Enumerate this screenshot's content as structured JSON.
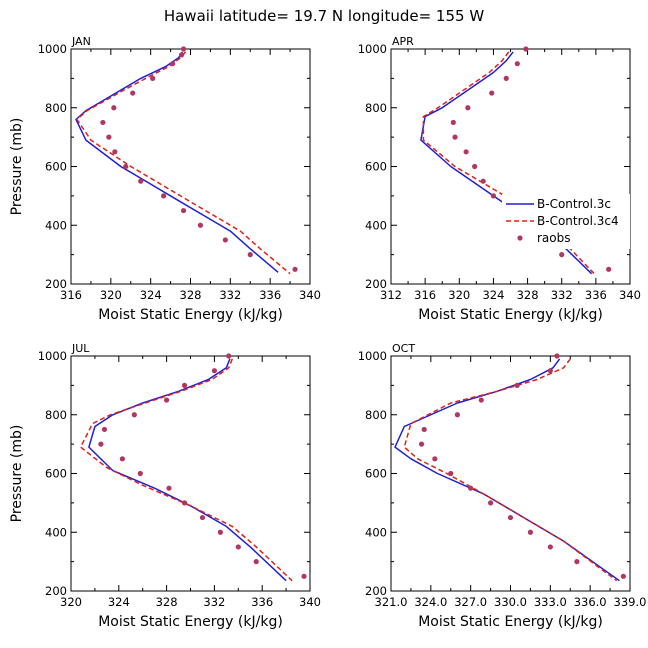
{
  "title": "Hawaii  latitude= 19.7 N longitude= 155 W",
  "colors": {
    "control": "#1f1fd6",
    "control4": "#e0201a",
    "raobs": "#b03860"
  },
  "legend": {
    "items": [
      "B-Control.3c",
      "B-Control.3c4",
      "raobs"
    ]
  },
  "chart_data": [
    {
      "type": "line",
      "panel": "JAN",
      "xlabel": "Moist Static Energy (kJ/kg)",
      "ylabel": "Pressure (mb)",
      "xlim": [
        316,
        340
      ],
      "xticks": [
        "316",
        "320",
        "324",
        "328",
        "332",
        "336",
        "340"
      ],
      "xtick_values": [
        316,
        320,
        324,
        328,
        332,
        336,
        340
      ],
      "ylim": [
        1000,
        200
      ],
      "yticks": [
        1000,
        800,
        600,
        400,
        200
      ],
      "series": [
        {
          "name": "B-Control.3c",
          "style": "solid",
          "points": [
            [
              327.2,
              990
            ],
            [
              326.8,
              970
            ],
            [
              325.5,
              940
            ],
            [
              323,
              900
            ],
            [
              321,
              860
            ],
            [
              319,
              820
            ],
            [
              317.5,
              790
            ],
            [
              316.5,
              760
            ],
            [
              317.5,
              690
            ],
            [
              321,
              600
            ],
            [
              324,
              540
            ],
            [
              327,
              480
            ],
            [
              330,
              420
            ],
            [
              332,
              380
            ],
            [
              334,
              320
            ],
            [
              336.8,
              240
            ]
          ]
        },
        {
          "name": "B-Control.3c4",
          "style": "dashed",
          "points": [
            [
              327.5,
              990
            ],
            [
              327,
              970
            ],
            [
              325.8,
              940
            ],
            [
              323.5,
              900
            ],
            [
              321.3,
              860
            ],
            [
              319.2,
              820
            ],
            [
              317.6,
              790
            ],
            [
              316.6,
              760
            ],
            [
              318,
              690
            ],
            [
              322,
              600
            ],
            [
              325,
              540
            ],
            [
              328,
              480
            ],
            [
              331,
              420
            ],
            [
              333,
              380
            ],
            [
              335,
              320
            ],
            [
              338,
              235
            ]
          ]
        },
        {
          "name": "raobs",
          "style": "dots",
          "points": [
            [
              327.3,
              1000
            ],
            [
              327.1,
              980
            ],
            [
              326.2,
              950
            ],
            [
              324.2,
              900
            ],
            [
              322.2,
              850
            ],
            [
              320.3,
              800
            ],
            [
              319.2,
              750
            ],
            [
              319.8,
              700
            ],
            [
              320.4,
              650
            ],
            [
              321.5,
              600
            ],
            [
              323,
              550
            ],
            [
              325.3,
              500
            ],
            [
              327.3,
              450
            ],
            [
              329,
              400
            ],
            [
              331.5,
              350
            ],
            [
              334,
              300
            ],
            [
              338.5,
              250
            ]
          ]
        }
      ]
    },
    {
      "type": "line",
      "panel": "APR",
      "xlabel": "Moist Static Energy (kJ/kg)",
      "ylabel": "",
      "xlim": [
        312,
        340
      ],
      "xticks": [
        "312",
        "316",
        "320",
        "324",
        "328",
        "332",
        "336",
        "340"
      ],
      "xtick_values": [
        312,
        316,
        320,
        324,
        328,
        332,
        336,
        340
      ],
      "ylim": [
        1000,
        200
      ],
      "yticks": [
        1000,
        800,
        600,
        400,
        200
      ],
      "series": [
        {
          "name": "B-Control.3c",
          "style": "solid",
          "points": [
            [
              326.3,
              990
            ],
            [
              325.5,
              960
            ],
            [
              324,
              920
            ],
            [
              322,
              880
            ],
            [
              320,
              840
            ],
            [
              318,
              800
            ],
            [
              316,
              770
            ],
            [
              315.5,
              690
            ],
            [
              319,
              600
            ],
            [
              322,
              540
            ],
            [
              325,
              480
            ],
            [
              328,
              420
            ],
            [
              330,
              380
            ],
            [
              332.5,
              320
            ],
            [
              335.5,
              235
            ]
          ]
        },
        {
          "name": "B-Control.3c4",
          "style": "dashed",
          "points": [
            [
              325.8,
              990
            ],
            [
              325,
              960
            ],
            [
              323.5,
              920
            ],
            [
              321.5,
              880
            ],
            [
              319.5,
              840
            ],
            [
              317.5,
              800
            ],
            [
              315.8,
              770
            ],
            [
              315.8,
              690
            ],
            [
              319.5,
              600
            ],
            [
              323,
              540
            ],
            [
              326.5,
              480
            ],
            [
              329,
              420
            ],
            [
              331,
              380
            ],
            [
              333,
              320
            ],
            [
              335.8,
              235
            ]
          ]
        },
        {
          "name": "raobs",
          "style": "dots",
          "points": [
            [
              327.8,
              1000
            ],
            [
              326.8,
              950
            ],
            [
              325.5,
              900
            ],
            [
              323.8,
              850
            ],
            [
              321,
              800
            ],
            [
              319.3,
              750
            ],
            [
              319.5,
              700
            ],
            [
              320.8,
              650
            ],
            [
              321.8,
              600
            ],
            [
              322.8,
              550
            ],
            [
              324,
              500
            ],
            [
              325.8,
              450
            ],
            [
              327,
              400
            ],
            [
              328.7,
              350
            ],
            [
              332,
              300
            ],
            [
              337.5,
              250
            ]
          ]
        }
      ]
    },
    {
      "type": "line",
      "panel": "JUL",
      "xlabel": "Moist Static Energy (kJ/kg)",
      "ylabel": "Pressure (mb)",
      "xlim": [
        320,
        340
      ],
      "xticks": [
        "320",
        "324",
        "328",
        "332",
        "336",
        "340"
      ],
      "xtick_values": [
        320,
        324,
        328,
        332,
        336,
        340
      ],
      "ylim": [
        1000,
        200
      ],
      "yticks": [
        1000,
        800,
        600,
        400,
        200
      ],
      "series": [
        {
          "name": "B-Control.3c",
          "style": "solid",
          "points": [
            [
              333.3,
              990
            ],
            [
              333,
              960
            ],
            [
              331.5,
              920
            ],
            [
              329,
              880
            ],
            [
              326,
              840
            ],
            [
              323.5,
              800
            ],
            [
              322,
              760
            ],
            [
              321.5,
              690
            ],
            [
              323.5,
              610
            ],
            [
              327,
              550
            ],
            [
              330,
              490
            ],
            [
              333,
              420
            ],
            [
              335,
              350
            ],
            [
              338,
              235
            ]
          ]
        },
        {
          "name": "B-Control.3c4",
          "style": "dashed",
          "points": [
            [
              333.5,
              990
            ],
            [
              333.2,
              960
            ],
            [
              331.8,
              920
            ],
            [
              329.2,
              880
            ],
            [
              326.2,
              840
            ],
            [
              323.3,
              800
            ],
            [
              321.8,
              770
            ],
            [
              320.8,
              690
            ],
            [
              323,
              620
            ],
            [
              326,
              560
            ],
            [
              330,
              490
            ],
            [
              333.5,
              420
            ],
            [
              335.5,
              350
            ],
            [
              338.5,
              235
            ]
          ]
        },
        {
          "name": "raobs",
          "style": "dots",
          "points": [
            [
              333.2,
              1000
            ],
            [
              332,
              950
            ],
            [
              329.5,
              900
            ],
            [
              328,
              850
            ],
            [
              325.3,
              800
            ],
            [
              322.8,
              750
            ],
            [
              322.5,
              700
            ],
            [
              324.3,
              650
            ],
            [
              325.8,
              600
            ],
            [
              328.2,
              550
            ],
            [
              329.5,
              500
            ],
            [
              331,
              450
            ],
            [
              332.5,
              400
            ],
            [
              334,
              350
            ],
            [
              335.5,
              300
            ],
            [
              339.5,
              250
            ]
          ]
        }
      ]
    },
    {
      "type": "line",
      "panel": "OCT",
      "xlabel": "Moist Static Energy (kJ/kg)",
      "ylabel": "",
      "xlim": [
        321,
        339
      ],
      "xticks": [
        "321.0",
        "324.0",
        "327.0",
        "330.0",
        "333.0",
        "336.0",
        "339.0"
      ],
      "xtick_values": [
        321,
        324,
        327,
        330,
        333,
        336,
        339
      ],
      "ylim": [
        1000,
        200
      ],
      "yticks": [
        1000,
        800,
        600,
        400,
        200
      ],
      "series": [
        {
          "name": "B-Control.3c",
          "style": "solid",
          "points": [
            [
              333.7,
              990
            ],
            [
              333.2,
              960
            ],
            [
              331.5,
              920
            ],
            [
              329,
              880
            ],
            [
              326,
              840
            ],
            [
              322,
              760
            ],
            [
              321.3,
              690
            ],
            [
              322.5,
              650
            ],
            [
              324.5,
              600
            ],
            [
              328,
              530
            ],
            [
              331,
              450
            ],
            [
              334,
              370
            ],
            [
              338.2,
              235
            ]
          ]
        },
        {
          "name": "B-Control.3c4",
          "style": "dashed",
          "points": [
            [
              334.5,
              990
            ],
            [
              334,
              960
            ],
            [
              332,
              920
            ],
            [
              329,
              880
            ],
            [
              325.5,
              840
            ],
            [
              322.5,
              770
            ],
            [
              322,
              690
            ],
            [
              323,
              650
            ],
            [
              325.2,
              600
            ],
            [
              328,
              530
            ],
            [
              331,
              450
            ],
            [
              334,
              370
            ],
            [
              338,
              235
            ]
          ]
        },
        {
          "name": "raobs",
          "style": "dots",
          "points": [
            [
              333.5,
              1000
            ],
            [
              333,
              950
            ],
            [
              330.5,
              900
            ],
            [
              327.8,
              850
            ],
            [
              326,
              800
            ],
            [
              323.5,
              750
            ],
            [
              323.3,
              700
            ],
            [
              324.3,
              650
            ],
            [
              325.5,
              600
            ],
            [
              327,
              550
            ],
            [
              328.5,
              500
            ],
            [
              330,
              450
            ],
            [
              331.5,
              400
            ],
            [
              333,
              350
            ],
            [
              335,
              300
            ],
            [
              338.5,
              250
            ]
          ]
        }
      ]
    }
  ]
}
